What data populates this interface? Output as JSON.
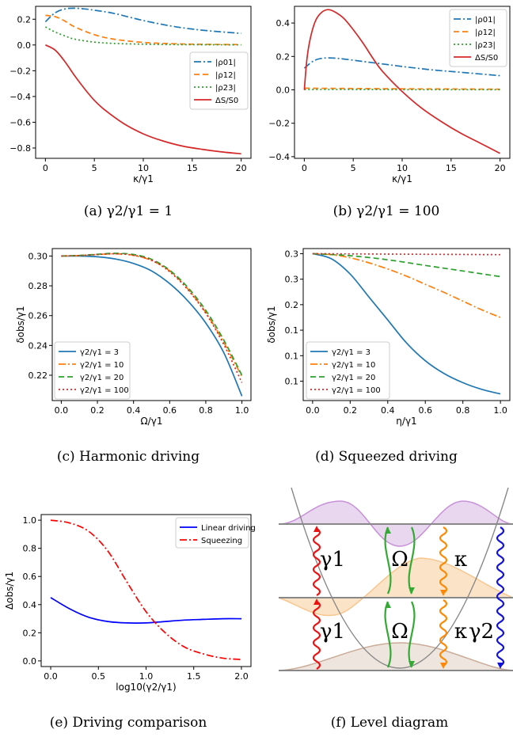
{
  "chart_data": [
    {
      "id": "a",
      "type": "line",
      "caption": "(a) γ2/γ1 = 1",
      "xlabel": "κ/γ1",
      "ylabel": "",
      "xlim": [
        -1,
        21
      ],
      "ylim": [
        -0.88,
        0.3
      ],
      "xticks": [
        0,
        5,
        10,
        15,
        20
      ],
      "yticks": [
        -0.8,
        -0.6,
        -0.4,
        -0.2,
        0.0,
        0.2
      ],
      "legend": "right",
      "series": [
        {
          "name": "|ρ01|",
          "color": "#1f77b4",
          "dash": "9,3,2,3",
          "x": [
            0,
            1,
            2,
            3,
            4,
            5,
            7,
            10,
            13,
            16,
            20
          ],
          "y": [
            0.18,
            0.25,
            0.28,
            0.285,
            0.28,
            0.27,
            0.245,
            0.19,
            0.145,
            0.115,
            0.09
          ]
        },
        {
          "name": "|ρ12|",
          "color": "#ff7f0e",
          "dash": "7,4",
          "x": [
            0,
            1,
            2,
            3,
            5,
            7,
            10,
            13,
            16,
            20
          ],
          "y": [
            0.23,
            0.22,
            0.185,
            0.14,
            0.08,
            0.045,
            0.02,
            0.01,
            0.005,
            0.003
          ]
        },
        {
          "name": "|ρ23|",
          "color": "#2ca02c",
          "dash": "2,3",
          "x": [
            0,
            1,
            2,
            3,
            5,
            7,
            10,
            13,
            16,
            20
          ],
          "y": [
            0.14,
            0.1,
            0.07,
            0.045,
            0.022,
            0.012,
            0.006,
            0.003,
            0.002,
            0.001
          ]
        },
        {
          "name": "ΔS/S0",
          "color": "#d62728",
          "dash": "",
          "x": [
            0,
            1,
            2,
            3,
            4,
            5,
            6,
            8,
            10,
            12,
            14,
            16,
            18,
            20
          ],
          "y": [
            0.0,
            -0.04,
            -0.13,
            -0.24,
            -0.34,
            -0.43,
            -0.5,
            -0.61,
            -0.69,
            -0.745,
            -0.785,
            -0.81,
            -0.83,
            -0.845
          ]
        }
      ]
    },
    {
      "id": "b",
      "type": "line",
      "caption": "(b) γ2/γ1 = 100",
      "xlabel": "κ/γ1",
      "ylabel": "",
      "xlim": [
        -1,
        21
      ],
      "ylim": [
        -0.41,
        0.5
      ],
      "xticks": [
        0,
        5,
        10,
        15,
        20
      ],
      "yticks": [
        -0.4,
        -0.2,
        0.0,
        0.2,
        0.4
      ],
      "legend": "top-right",
      "series": [
        {
          "name": "|ρ01|",
          "color": "#1f77b4",
          "dash": "9,3,2,3",
          "x": [
            0,
            1,
            2,
            3,
            4,
            6,
            8,
            10,
            13,
            16,
            20
          ],
          "y": [
            0.13,
            0.175,
            0.19,
            0.19,
            0.185,
            0.17,
            0.155,
            0.14,
            0.12,
            0.105,
            0.085
          ]
        },
        {
          "name": "|ρ12|",
          "color": "#ff7f0e",
          "dash": "7,4",
          "x": [
            0,
            5,
            10,
            15,
            20
          ],
          "y": [
            0.01,
            0.008,
            0.006,
            0.005,
            0.004
          ]
        },
        {
          "name": "|ρ23|",
          "color": "#2ca02c",
          "dash": "2,3",
          "x": [
            0,
            5,
            10,
            15,
            20
          ],
          "y": [
            0.002,
            0.002,
            0.001,
            0.001,
            0.001
          ]
        },
        {
          "name": "ΔS/S0",
          "color": "#d62728",
          "dash": "",
          "x": [
            0,
            0.3,
            0.7,
            1.2,
            1.8,
            2.4,
            3,
            4,
            5,
            6,
            7,
            8,
            10,
            12,
            14,
            16,
            18,
            20
          ],
          "y": [
            0.0,
            0.2,
            0.33,
            0.42,
            0.465,
            0.48,
            0.47,
            0.43,
            0.36,
            0.28,
            0.19,
            0.11,
            -0.01,
            -0.11,
            -0.19,
            -0.26,
            -0.32,
            -0.38
          ]
        }
      ]
    },
    {
      "id": "c",
      "type": "line",
      "caption": "(c) Harmonic driving",
      "xlabel": "Ω/γ1",
      "ylabel": "δobs/γ1",
      "xlim": [
        -0.05,
        1.05
      ],
      "ylim": [
        0.203,
        0.305
      ],
      "xticks": [
        0.0,
        0.2,
        0.4,
        0.6,
        0.8,
        1.0
      ],
      "yticks": [
        0.22,
        0.24,
        0.26,
        0.28,
        0.3
      ],
      "legend": "bottom-left",
      "series": [
        {
          "name": "γ2/γ1 = 3",
          "color": "#1f77b4",
          "dash": "",
          "x": [
            0,
            0.1,
            0.2,
            0.3,
            0.4,
            0.5,
            0.6,
            0.7,
            0.8,
            0.9,
            1.0
          ],
          "y": [
            0.3,
            0.3,
            0.2995,
            0.298,
            0.295,
            0.29,
            0.2815,
            0.27,
            0.255,
            0.235,
            0.206
          ]
        },
        {
          "name": "γ2/γ1 = 10",
          "color": "#ff7f0e",
          "dash": "9,3,2,3",
          "x": [
            0,
            0.1,
            0.2,
            0.3,
            0.4,
            0.5,
            0.6,
            0.7,
            0.8,
            0.9,
            1.0
          ],
          "y": [
            0.3,
            0.3003,
            0.301,
            0.3015,
            0.3005,
            0.297,
            0.29,
            0.278,
            0.262,
            0.242,
            0.219
          ]
        },
        {
          "name": "γ2/γ1 = 20",
          "color": "#2ca02c",
          "dash": "7,4",
          "x": [
            0,
            0.1,
            0.2,
            0.3,
            0.4,
            0.5,
            0.6,
            0.7,
            0.8,
            0.9,
            1.0
          ],
          "y": [
            0.3,
            0.3004,
            0.3012,
            0.3018,
            0.301,
            0.2978,
            0.2905,
            0.279,
            0.2635,
            0.2435,
            0.22
          ]
        },
        {
          "name": "γ2/γ1 = 100",
          "color": "#d62728",
          "dash": "2,3",
          "x": [
            0,
            0.1,
            0.2,
            0.3,
            0.4,
            0.5,
            0.6,
            0.7,
            0.8,
            0.9,
            1.0
          ],
          "y": [
            0.3,
            0.3003,
            0.301,
            0.3015,
            0.3005,
            0.2972,
            0.2895,
            0.2775,
            0.2615,
            0.2405,
            0.215
          ]
        }
      ]
    },
    {
      "id": "d",
      "type": "line",
      "caption": "(d) Squeezed driving",
      "xlabel": "η/γ1",
      "ylabel": "δobs/γ1",
      "xlim": [
        -0.05,
        1.05
      ],
      "ylim": [
        0.012,
        0.31
      ],
      "xticks": [
        0.0,
        0.2,
        0.4,
        0.6,
        0.8,
        1.0
      ],
      "yticks": [
        0.05,
        0.1,
        0.15,
        0.2,
        0.25,
        0.3
      ],
      "legend": "bottom-left",
      "series": [
        {
          "name": "γ2/γ1 = 3",
          "color": "#1f77b4",
          "dash": "",
          "x": [
            0,
            0.1,
            0.2,
            0.3,
            0.4,
            0.5,
            0.6,
            0.7,
            0.8,
            0.9,
            1.0
          ],
          "y": [
            0.3,
            0.29,
            0.26,
            0.215,
            0.17,
            0.125,
            0.09,
            0.065,
            0.047,
            0.034,
            0.025
          ]
        },
        {
          "name": "γ2/γ1 = 10",
          "color": "#ff7f0e",
          "dash": "9,3,2,3",
          "x": [
            0,
            0.1,
            0.2,
            0.3,
            0.4,
            0.5,
            0.6,
            0.7,
            0.8,
            0.9,
            1.0
          ],
          "y": [
            0.3,
            0.298,
            0.292,
            0.282,
            0.27,
            0.256,
            0.24,
            0.224,
            0.207,
            0.19,
            0.175
          ]
        },
        {
          "name": "γ2/γ1 = 20",
          "color": "#2ca02c",
          "dash": "7,4",
          "x": [
            0,
            0.2,
            0.4,
            0.6,
            0.8,
            1.0
          ],
          "y": [
            0.3,
            0.296,
            0.288,
            0.277,
            0.266,
            0.255
          ]
        },
        {
          "name": "γ2/γ1 = 100",
          "color": "#d62728",
          "dash": "2,3",
          "x": [
            0,
            0.5,
            1.0
          ],
          "y": [
            0.3,
            0.299,
            0.298
          ]
        }
      ]
    },
    {
      "id": "e",
      "type": "line",
      "caption": "(e) Driving comparison",
      "xlabel": "log10(γ2/γ1)",
      "ylabel": "Δobs/γ1",
      "xlim": [
        -0.1,
        2.1
      ],
      "ylim": [
        -0.04,
        1.04
      ],
      "xticks": [
        0.0,
        0.5,
        1.0,
        1.5,
        2.0
      ],
      "yticks": [
        0.0,
        0.2,
        0.4,
        0.6,
        0.8,
        1.0
      ],
      "legend": "top-right",
      "series": [
        {
          "name": "Linear driving",
          "color": "#0000ff",
          "dash": "",
          "x": [
            0,
            0.2,
            0.4,
            0.6,
            0.8,
            1.0,
            1.2,
            1.4,
            1.6,
            1.8,
            2.0
          ],
          "y": [
            0.45,
            0.37,
            0.31,
            0.28,
            0.27,
            0.27,
            0.28,
            0.29,
            0.295,
            0.3,
            0.3
          ]
        },
        {
          "name": "Squeezing",
          "color": "#ff0000",
          "dash": "9,3,2,3",
          "x": [
            0,
            0.2,
            0.4,
            0.6,
            0.8,
            1.0,
            1.2,
            1.4,
            1.6,
            1.8,
            2.0
          ],
          "y": [
            1.0,
            0.98,
            0.92,
            0.78,
            0.56,
            0.35,
            0.2,
            0.1,
            0.05,
            0.02,
            0.01
          ]
        }
      ]
    }
  ],
  "diagram": {
    "caption": "(f) Level diagram",
    "labels": {
      "g1_top": "γ1",
      "omega_top": "Ω",
      "kappa_top": "κ",
      "g1_bot": "γ1",
      "omega_bot": "Ω",
      "kappa_bot": "κ",
      "g2": "γ2"
    },
    "colors": {
      "gamma1": "#ee1111",
      "omega": "#33aa33",
      "kappa": "#ff8800",
      "gamma2": "#1111dd",
      "wave_top": "#c890d8",
      "wave_mid": "#f8c68e",
      "wave_bot": "#c9ab96"
    }
  }
}
